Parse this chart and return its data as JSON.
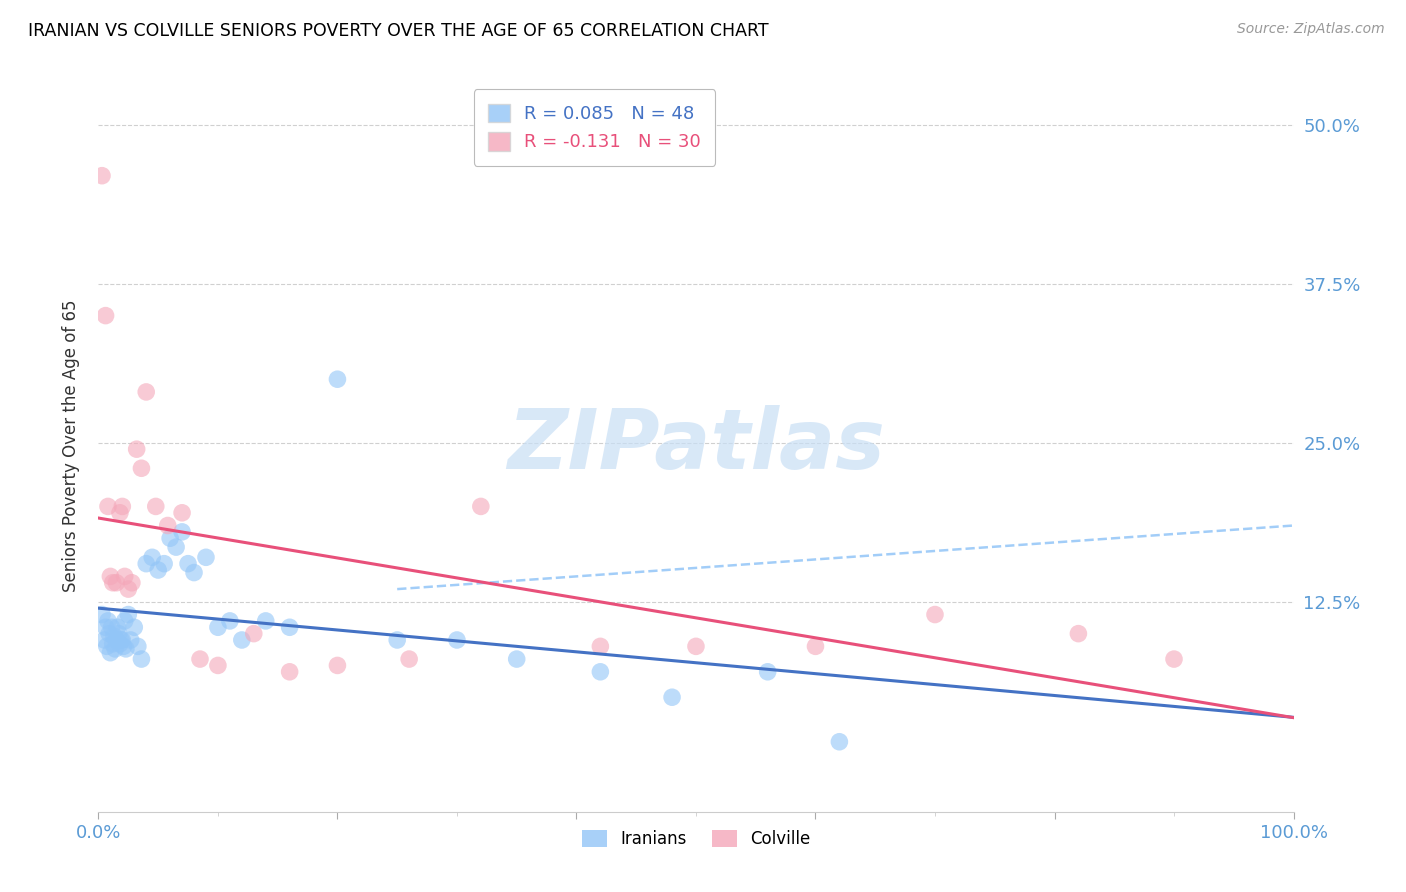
{
  "title": "IRANIAN VS COLVILLE SENIORS POVERTY OVER THE AGE OF 65 CORRELATION CHART",
  "source": "Source: ZipAtlas.com",
  "ylabel": "Seniors Poverty Over the Age of 65",
  "iranians_color": "#92c5f7",
  "iranians_line_color": "#4472c4",
  "colville_color": "#f4a7b9",
  "colville_line_color": "#e8507a",
  "iranians_R": 0.085,
  "iranians_N": 48,
  "colville_R": -0.131,
  "colville_N": 30,
  "watermark_text": "ZIPatlas",
  "watermark_color": "#c8dff5",
  "axis_label_color": "#5b9bd5",
  "grid_color": "#d0d0d0",
  "ytick_values": [
    0.125,
    0.25,
    0.375,
    0.5
  ],
  "ytick_labels": [
    "12.5%",
    "25.0%",
    "37.5%",
    "50.0%"
  ],
  "xmin": 0.0,
  "xmax": 1.0,
  "ymin": -0.04,
  "ymax": 0.535,
  "iranians_x": [
    0.003,
    0.005,
    0.006,
    0.007,
    0.008,
    0.009,
    0.01,
    0.011,
    0.012,
    0.013,
    0.014,
    0.015,
    0.016,
    0.017,
    0.018,
    0.019,
    0.02,
    0.021,
    0.022,
    0.023,
    0.025,
    0.027,
    0.03,
    0.033,
    0.036,
    0.04,
    0.045,
    0.05,
    0.055,
    0.06,
    0.065,
    0.07,
    0.075,
    0.08,
    0.09,
    0.1,
    0.11,
    0.12,
    0.14,
    0.16,
    0.2,
    0.25,
    0.3,
    0.35,
    0.42,
    0.48,
    0.56,
    0.62
  ],
  "iranians_y": [
    0.115,
    0.095,
    0.105,
    0.09,
    0.11,
    0.1,
    0.085,
    0.105,
    0.092,
    0.098,
    0.088,
    0.095,
    0.105,
    0.1,
    0.092,
    0.095,
    0.095,
    0.09,
    0.11,
    0.088,
    0.115,
    0.095,
    0.105,
    0.09,
    0.08,
    0.155,
    0.16,
    0.15,
    0.155,
    0.175,
    0.168,
    0.18,
    0.155,
    0.148,
    0.16,
    0.105,
    0.11,
    0.095,
    0.11,
    0.105,
    0.3,
    0.095,
    0.095,
    0.08,
    0.07,
    0.05,
    0.07,
    0.015
  ],
  "colville_x": [
    0.003,
    0.006,
    0.008,
    0.01,
    0.012,
    0.015,
    0.018,
    0.02,
    0.022,
    0.025,
    0.028,
    0.032,
    0.036,
    0.04,
    0.048,
    0.058,
    0.07,
    0.085,
    0.1,
    0.13,
    0.16,
    0.2,
    0.26,
    0.32,
    0.42,
    0.5,
    0.6,
    0.7,
    0.82,
    0.9
  ],
  "colville_y": [
    0.46,
    0.35,
    0.2,
    0.145,
    0.14,
    0.14,
    0.195,
    0.2,
    0.145,
    0.135,
    0.14,
    0.245,
    0.23,
    0.29,
    0.2,
    0.185,
    0.195,
    0.08,
    0.075,
    0.1,
    0.07,
    0.075,
    0.08,
    0.2,
    0.09,
    0.09,
    0.09,
    0.115,
    0.1,
    0.08
  ]
}
